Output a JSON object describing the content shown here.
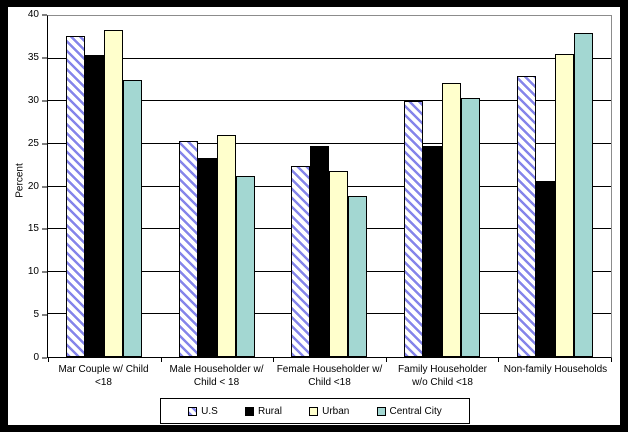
{
  "chart_data": {
    "type": "bar",
    "title": "",
    "ylabel": "Percent",
    "ylim": [
      0,
      40
    ],
    "ytick_step": 5,
    "grid": true,
    "legend_position": "bottom",
    "categories": [
      {
        "label": "Mar Couple w/ Child <18",
        "lines": [
          "Mar Couple w/ Child",
          "<18"
        ]
      },
      {
        "label": "Male Householder w/ Child < 18",
        "lines": [
          "Male Householder w/",
          "Child < 18"
        ]
      },
      {
        "label": "Female Householder w/ Child <18",
        "lines": [
          "Female Householder w/",
          "Child <18"
        ]
      },
      {
        "label": "Family Householder w/o Child <18",
        "lines": [
          "Family Householder",
          "w/o Child <18"
        ]
      },
      {
        "label": "Non-family Households",
        "lines": [
          "Non-family Households"
        ]
      }
    ],
    "series": [
      {
        "name": "U.S",
        "values": [
          37.7,
          25.3,
          22.4,
          30.0,
          33.0
        ],
        "fill": "#ffffff",
        "pattern": "diagonal-stripes",
        "pattern_color": "#8585ea"
      },
      {
        "name": "Rural",
        "values": [
          35.4,
          23.4,
          24.7,
          24.7,
          20.7
        ],
        "fill": "#000000"
      },
      {
        "name": "Urban",
        "values": [
          38.4,
          26.0,
          21.8,
          32.2,
          35.6
        ],
        "fill": "#ffffcc"
      },
      {
        "name": "Central City",
        "values": [
          32.5,
          21.2,
          18.9,
          30.4,
          38.0
        ],
        "fill": "#a3d7d2"
      }
    ]
  },
  "colors": {
    "plot_border": "#8c8c8c",
    "axis": "#000000",
    "outer_frame": "#000000",
    "background": "#ffffff"
  }
}
